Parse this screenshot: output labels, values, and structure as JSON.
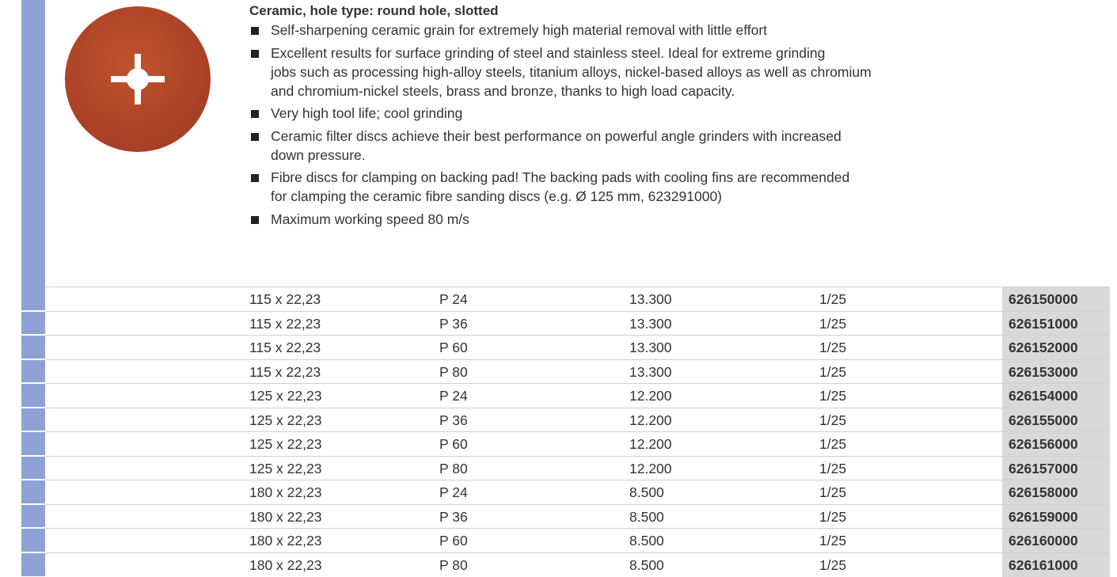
{
  "header": {
    "title": "Ceramic, hole type: round hole, slotted"
  },
  "bullets": [
    {
      "lines": [
        "Self-sharpening ceramic grain for extremely high material removal with little effort"
      ]
    },
    {
      "lines": [
        "Excellent results for surface grinding of steel and stainless steel. Ideal for extreme grinding",
        "jobs such as processing high-alloy steels, titanium alloys, nickel-based alloys as well as chromium",
        "and chromium-nickel steels, brass and bronze, thanks to high load capacity."
      ]
    },
    {
      "lines": [
        "Very high tool life; cool grinding"
      ]
    },
    {
      "lines": [
        "Ceramic filter discs achieve their best performance on powerful angle grinders with increased",
        "down pressure."
      ]
    },
    {
      "lines": [
        "Fibre discs for clamping on backing pad! The backing pads with cooling fins are recommended",
        "for clamping the ceramic fibre sanding discs (e.g. Ø 125 mm, 623291000)"
      ]
    },
    {
      "lines": [
        "Maximum working speed 80 m/s"
      ]
    }
  ],
  "table": {
    "rows": [
      [
        "115 x 22,23",
        "P 24",
        "13.300",
        "1/25",
        "626150000"
      ],
      [
        "115 x 22,23",
        "P 36",
        "13.300",
        "1/25",
        "626151000"
      ],
      [
        "115 x 22,23",
        "P 60",
        "13.300",
        "1/25",
        "626152000"
      ],
      [
        "115 x 22,23",
        "P 80",
        "13.300",
        "1/25",
        "626153000"
      ],
      [
        "125 x 22,23",
        "P 24",
        "12.200",
        "1/25",
        "626154000"
      ],
      [
        "125 x 22,23",
        "P 36",
        "12.200",
        "1/25",
        "626155000"
      ],
      [
        "125 x 22,23",
        "P 60",
        "12.200",
        "1/25",
        "626156000"
      ],
      [
        "125 x 22,23",
        "P 80",
        "12.200",
        "1/25",
        "626157000"
      ],
      [
        "180 x 22,23",
        "P 24",
        "8.500",
        "1/25",
        "626158000"
      ],
      [
        "180 x 22,23",
        "P 36",
        "8.500",
        "1/25",
        "626159000"
      ],
      [
        "180 x 22,23",
        "P 60",
        "8.500",
        "1/25",
        "626160000"
      ],
      [
        "180 x 22,23",
        "P 80",
        "8.500",
        "1/25",
        "626161000"
      ]
    ]
  }
}
